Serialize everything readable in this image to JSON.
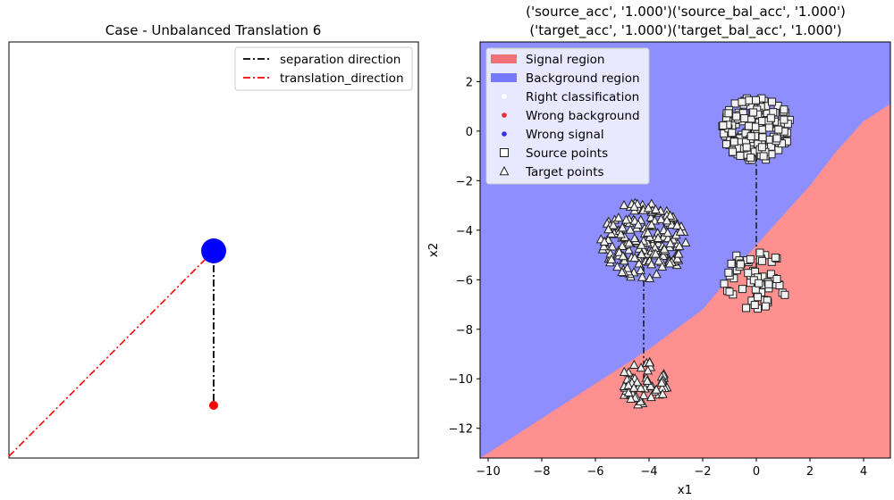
{
  "chart_data": [
    {
      "type": "line",
      "title": "Case - Unbalanced Translation 6",
      "xlabel": "",
      "ylabel": "",
      "axes_visible": false,
      "grid": false,
      "legend_position": "top-right",
      "series": [
        {
          "name": "separation direction",
          "color": "#000000",
          "linestyle": "dash-dot"
        },
        {
          "name": "translation_direction",
          "color": "#ff0000",
          "linestyle": "dash-dot"
        }
      ],
      "markers": [
        {
          "color": "#0000ff",
          "size": "large"
        },
        {
          "color": "#ff0000",
          "size": "small"
        }
      ]
    },
    {
      "type": "scatter",
      "title_lines": [
        "('source_acc', '1.000')('source_bal_acc', '1.000')",
        "('target_acc', '1.000')('target_bal_acc', '1.000')"
      ],
      "xlabel": "x1",
      "ylabel": "x2",
      "xlim": [
        -10.3,
        5.0
      ],
      "ylim": [
        -13.2,
        3.6
      ],
      "xticks": [
        -10,
        -8,
        -6,
        -4,
        -2,
        0,
        2,
        4
      ],
      "yticks": [
        2,
        0,
        -2,
        -4,
        -6,
        -8,
        -10,
        -12
      ],
      "xtick_labels": [
        "−10",
        "−8",
        "−6",
        "−4",
        "−2",
        "0",
        "2",
        "4"
      ],
      "ytick_labels": [
        "2",
        "0",
        "−2",
        "−4",
        "−6",
        "−8",
        "−10",
        "−12"
      ],
      "grid": false,
      "legend_position": "top-left",
      "regions": {
        "signal_color": "#ff9090",
        "background_color": "#8e8eff",
        "boundary": [
          [
            -10.3,
            -13.2
          ],
          [
            -10.0,
            -13.0
          ],
          [
            -8,
            -11.6
          ],
          [
            -6,
            -10.2
          ],
          [
            -4,
            -8.8
          ],
          [
            -2,
            -7.2
          ],
          [
            0,
            -4.6
          ],
          [
            2,
            -2.2
          ],
          [
            3,
            -0.8
          ],
          [
            4,
            0.4
          ],
          [
            5.0,
            1.1
          ]
        ]
      },
      "legend": [
        {
          "label": "Signal region",
          "kind": "patch",
          "color": "#f07078"
        },
        {
          "label": "Background region",
          "kind": "patch",
          "color": "#7878ff"
        },
        {
          "label": "Right classification",
          "kind": "dot",
          "color": "#ffffff"
        },
        {
          "label": "Wrong background",
          "kind": "dot",
          "color": "#e83030"
        },
        {
          "label": "Wrong signal",
          "kind": "dot",
          "color": "#3030e8"
        },
        {
          "label": "Source points",
          "kind": "square",
          "color": "#ffffff"
        },
        {
          "label": "Target points",
          "kind": "triangle",
          "color": "#ffffff"
        }
      ],
      "clusters": [
        {
          "shape": "square",
          "group": "Source points",
          "center": [
            0.0,
            0.1
          ],
          "radius": 1.3,
          "count": 190
        },
        {
          "shape": "square",
          "group": "Source points",
          "center": [
            0.0,
            -6.0
          ],
          "radius": 1.25,
          "count": 60
        },
        {
          "shape": "triangle",
          "group": "Target points",
          "center": [
            -4.2,
            -4.4
          ],
          "radius": 1.6,
          "count": 190
        },
        {
          "shape": "triangle",
          "group": "Target points",
          "center": [
            -4.2,
            -10.2
          ],
          "radius": 0.9,
          "count": 60
        }
      ],
      "connectors": [
        {
          "from": [
            0.0,
            0.1
          ],
          "to": [
            0.0,
            -6.0
          ]
        },
        {
          "from": [
            -4.2,
            -4.4
          ],
          "to": [
            -4.2,
            -10.2
          ]
        }
      ]
    }
  ]
}
